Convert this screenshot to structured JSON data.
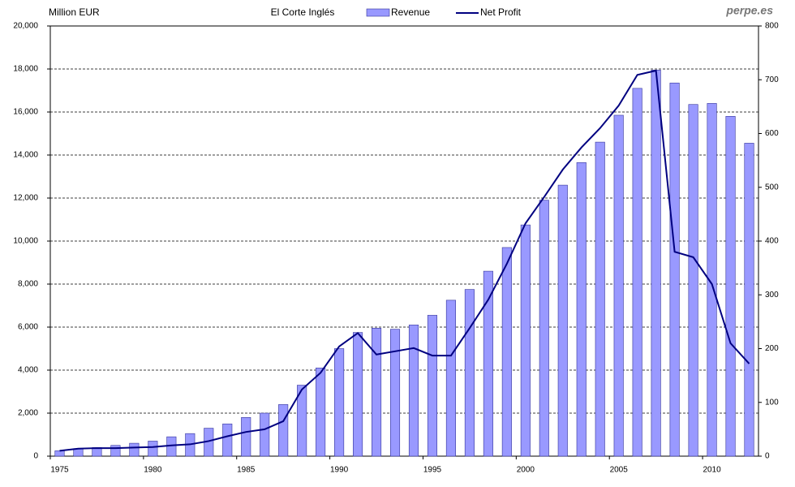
{
  "chart_data": {
    "type": "bar_line",
    "title": "El Corte Inglés",
    "y_label": "Million EUR",
    "watermark": "perpe.es",
    "categories": [
      "1975",
      null,
      null,
      null,
      null,
      "1980",
      null,
      null,
      null,
      null,
      "1985",
      null,
      null,
      null,
      null,
      "1990",
      null,
      null,
      null,
      null,
      "1995",
      null,
      null,
      null,
      null,
      "2000",
      null,
      null,
      null,
      null,
      "2005",
      null,
      null,
      null,
      null,
      "2010",
      null,
      null
    ],
    "series": [
      {
        "name": "Revenue",
        "kind": "bar",
        "color": "#9999ff",
        "edge": "#333399",
        "values": [
          250,
          350,
          400,
          500,
          600,
          700,
          900,
          1050,
          1300,
          1500,
          1800,
          2000,
          2400,
          3300,
          4100,
          5000,
          5750,
          5950,
          5900,
          6100,
          6550,
          7250,
          7750,
          8600,
          9700,
          10750,
          11900,
          12600,
          13650,
          14600,
          15850,
          17100,
          17950,
          17350,
          16350,
          16400,
          15800,
          14550
        ]
      },
      {
        "name": "Net Profit",
        "kind": "line",
        "axis": "y2",
        "color": "#000080",
        "values": [
          10,
          14,
          15,
          15,
          16,
          17,
          20,
          22,
          28,
          37,
          45,
          50,
          65,
          124,
          155,
          204,
          229,
          189,
          195,
          201,
          187,
          187,
          238,
          291,
          358,
          433,
          482,
          533,
          574,
          610,
          652,
          709,
          717,
          380,
          370,
          320,
          210,
          172
        ]
      }
    ],
    "ylim": [
      0,
      20000
    ],
    "yticks": [
      0,
      {
        "value": 2000,
        "label": "2,000"
      },
      {
        "value": 4000,
        "label": "4,000"
      },
      {
        "value": 6000,
        "label": "6,000"
      },
      {
        "value": 8000,
        "label": "8,000"
      },
      {
        "value": 10000,
        "label": "10,000"
      },
      {
        "value": 12000,
        "label": "12,000"
      },
      {
        "value": 14000,
        "label": "14,000"
      },
      {
        "value": 16000,
        "label": "16,000"
      },
      {
        "value": 18000,
        "label": "18,000"
      },
      {
        "value": 20000,
        "label": "20,000"
      }
    ],
    "y2lim": [
      0,
      800
    ],
    "y2ticks": [
      0,
      100,
      200,
      300,
      400,
      500,
      600,
      700,
      800
    ],
    "grid": true
  }
}
